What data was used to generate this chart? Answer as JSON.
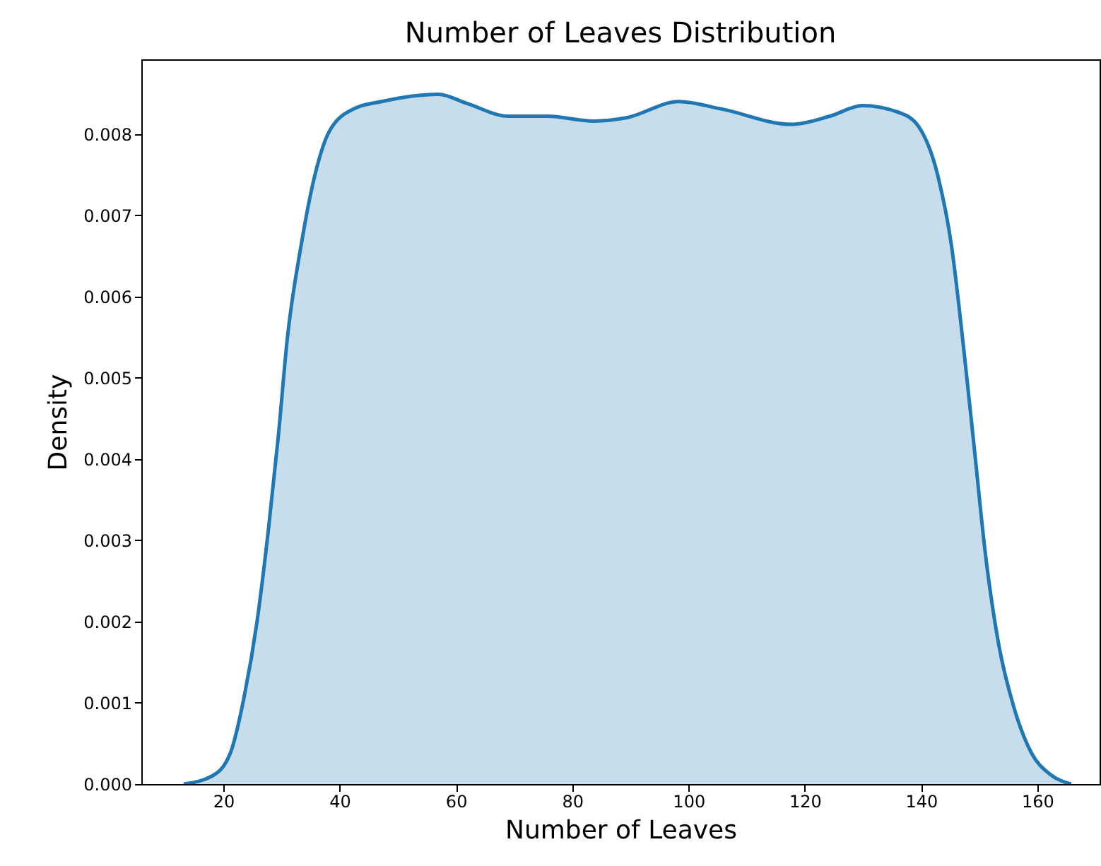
{
  "chart_data": {
    "type": "area",
    "title": "Number of Leaves Distribution",
    "xlabel": "Number of Leaves",
    "ylabel": "Density",
    "series": [
      {
        "color": "#1f77b4",
        "x": [
          13.2,
          18.1,
          21.2,
          23.6,
          25.8,
          27.8,
          29.5,
          31.0,
          33.4,
          35.8,
          38.2,
          42.4,
          47.2,
          57.0,
          61.8,
          69.1,
          75.7,
          83.7,
          89.3,
          98.3,
          105.6,
          117.7,
          124.3,
          129.9,
          136.4,
          139.6,
          142.8,
          145.2,
          147.6,
          149.3,
          151.0,
          153.4,
          155.9,
          159.0,
          162.2,
          165.8
        ],
        "values": [
          0,
          0.0001,
          0.00038,
          0.00108,
          0.002,
          0.00316,
          0.00431,
          0.00548,
          0.00664,
          0.00751,
          0.00803,
          0.00831,
          0.0084,
          0.00849,
          0.00838,
          0.00822,
          0.00822,
          0.00816,
          0.0082,
          0.0084,
          0.00831,
          0.00812,
          0.00822,
          0.00835,
          0.00826,
          0.00809,
          0.00751,
          0.00664,
          0.00518,
          0.00403,
          0.00287,
          0.0017,
          0.00096,
          0.00038,
          0.00012,
          0
        ]
      }
    ],
    "xlim": [
      5.9,
      170.7
    ],
    "ylim": [
      0,
      0.00892
    ],
    "xticks": [
      20,
      40,
      60,
      80,
      100,
      120,
      140,
      160
    ],
    "yticks": [
      {
        "value": 0,
        "label": "0.000"
      },
      {
        "value": 0.001,
        "label": "0.001"
      },
      {
        "value": 0.002,
        "label": "0.002"
      },
      {
        "value": 0.003,
        "label": "0.003"
      },
      {
        "value": 0.004,
        "label": "0.004"
      },
      {
        "value": 0.005,
        "label": "0.005"
      },
      {
        "value": 0.006,
        "label": "0.006"
      },
      {
        "value": 0.007,
        "label": "0.007"
      },
      {
        "value": 0.008,
        "label": "0.008"
      }
    ],
    "grid": false
  }
}
